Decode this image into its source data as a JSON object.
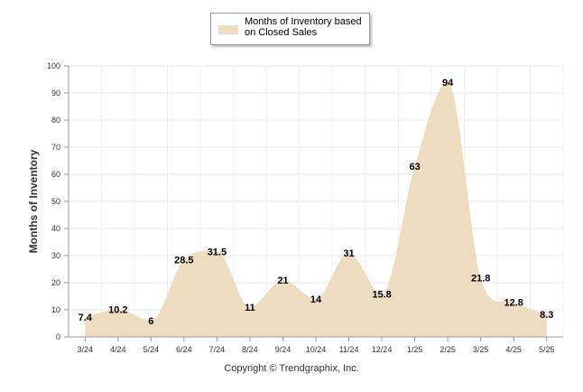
{
  "chart_data": {
    "type": "area",
    "categories": [
      "3/24",
      "4/24",
      "5/24",
      "6/24",
      "7/24",
      "8/24",
      "9/24",
      "10/24",
      "11/24",
      "12/24",
      "1/25",
      "2/25",
      "3/25",
      "4/25",
      "5/25"
    ],
    "series": [
      {
        "name": "Months of Inventory based on Closed Sales",
        "values": [
          7.4,
          10.2,
          6,
          28.5,
          31.5,
          11,
          21,
          14,
          31,
          15.8,
          63,
          94,
          21.8,
          12.8,
          8.3
        ]
      }
    ],
    "data_labels": [
      "7.4",
      "10.2",
      "6",
      "28.5",
      "31.5",
      "11",
      "21",
      "14",
      "31",
      "15.8",
      "63",
      "94",
      "21.8",
      "12.8",
      "8.3"
    ],
    "ylabel": "Months of Inventory",
    "xlabel": "",
    "ylim": [
      0,
      100
    ],
    "yticks": [
      0,
      10,
      20,
      30,
      40,
      50,
      60,
      70,
      80,
      90,
      100
    ],
    "grid": true,
    "legend_position": "top-center",
    "fill_color": "#eddcc0"
  },
  "footer": {
    "copyright": "Copyright © Trendgraphix, Inc."
  }
}
